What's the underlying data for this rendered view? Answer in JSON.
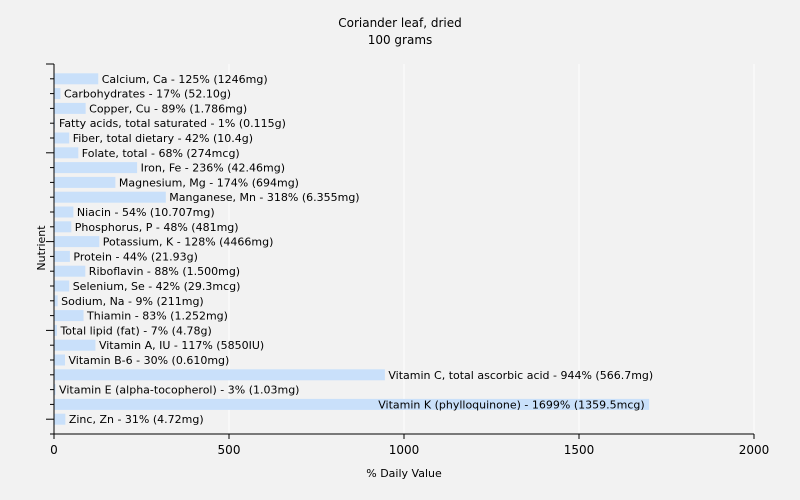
{
  "chart_data": {
    "type": "bar",
    "orientation": "horizontal",
    "title": "Coriander leaf, dried",
    "subtitle": "100 grams",
    "xlabel": "% Daily Value",
    "ylabel": "Nutrient",
    "xlim": [
      0,
      2000
    ],
    "xticks": [
      0,
      500,
      1000,
      1500,
      2000
    ],
    "grid": true,
    "bar_color": "#c9e0fa",
    "categories": [
      "Calcium, Ca",
      "Carbohydrates",
      "Copper, Cu",
      "Fatty acids, total saturated",
      "Fiber, total dietary",
      "Folate, total",
      "Iron, Fe",
      "Magnesium, Mg",
      "Manganese, Mn",
      "Niacin",
      "Phosphorus, P",
      "Potassium, K",
      "Protein",
      "Riboflavin",
      "Selenium, Se",
      "Sodium, Na",
      "Thiamin",
      "Total lipid (fat)",
      "Vitamin A, IU",
      "Vitamin B-6",
      "Vitamin C, total ascorbic acid",
      "Vitamin E (alpha-tocopherol)",
      "Vitamin K (phylloquinone)",
      "Zinc, Zn"
    ],
    "values": [
      125,
      17,
      89,
      1,
      42,
      68,
      236,
      174,
      318,
      54,
      48,
      128,
      44,
      88,
      42,
      9,
      83,
      7,
      117,
      30,
      944,
      3,
      1699,
      31
    ],
    "labels": [
      "Calcium, Ca - 125% (1246mg)",
      "Carbohydrates - 17% (52.10g)",
      "Copper, Cu - 89% (1.786mg)",
      "Fatty acids, total saturated - 1% (0.115g)",
      "Fiber, total dietary - 42% (10.4g)",
      "Folate, total - 68% (274mcg)",
      "Iron, Fe - 236% (42.46mg)",
      "Magnesium, Mg - 174% (694mg)",
      "Manganese, Mn - 318% (6.355mg)",
      "Niacin - 54% (10.707mg)",
      "Phosphorus, P - 48% (481mg)",
      "Potassium, K - 128% (4466mg)",
      "Protein - 44% (21.93g)",
      "Riboflavin - 88% (1.500mg)",
      "Selenium, Se - 42% (29.3mcg)",
      "Sodium, Na - 9% (211mg)",
      "Thiamin - 83% (1.252mg)",
      "Total lipid (fat) - 7% (4.78g)",
      "Vitamin A, IU - 117% (5850IU)",
      "Vitamin B-6 - 30% (0.610mg)",
      "Vitamin C, total ascorbic acid - 944% (566.7mg)",
      "Vitamin E (alpha-tocopherol) - 3% (1.03mg)",
      "Vitamin K (phylloquinone) - 1699% (1359.5mcg)",
      "Zinc, Zn - 31% (4.72mg)"
    ]
  }
}
